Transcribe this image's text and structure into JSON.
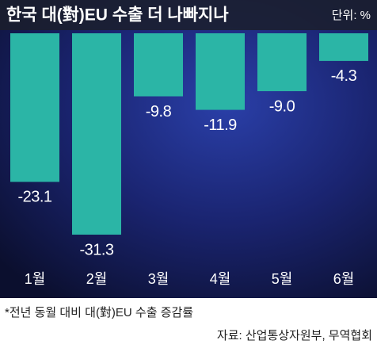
{
  "chart_data": {
    "type": "bar",
    "title": "한국 대(對)EU 수출 더 나빠지나",
    "unit": "단위: %",
    "categories": [
      "1월",
      "2월",
      "3월",
      "4월",
      "5월",
      "6월"
    ],
    "values": [
      -23.1,
      -31.3,
      -9.8,
      -11.9,
      -9.0,
      -4.3
    ],
    "value_labels": [
      "-23.1",
      "-31.3",
      "-9.8",
      "-11.9",
      "-9.0",
      "-4.3"
    ],
    "color": "#2bb5a6",
    "footnote": "*전년 동월 대비 대(對)EU 수출 증감률",
    "source": "자료: 산업통상자원부, 무역협회"
  }
}
